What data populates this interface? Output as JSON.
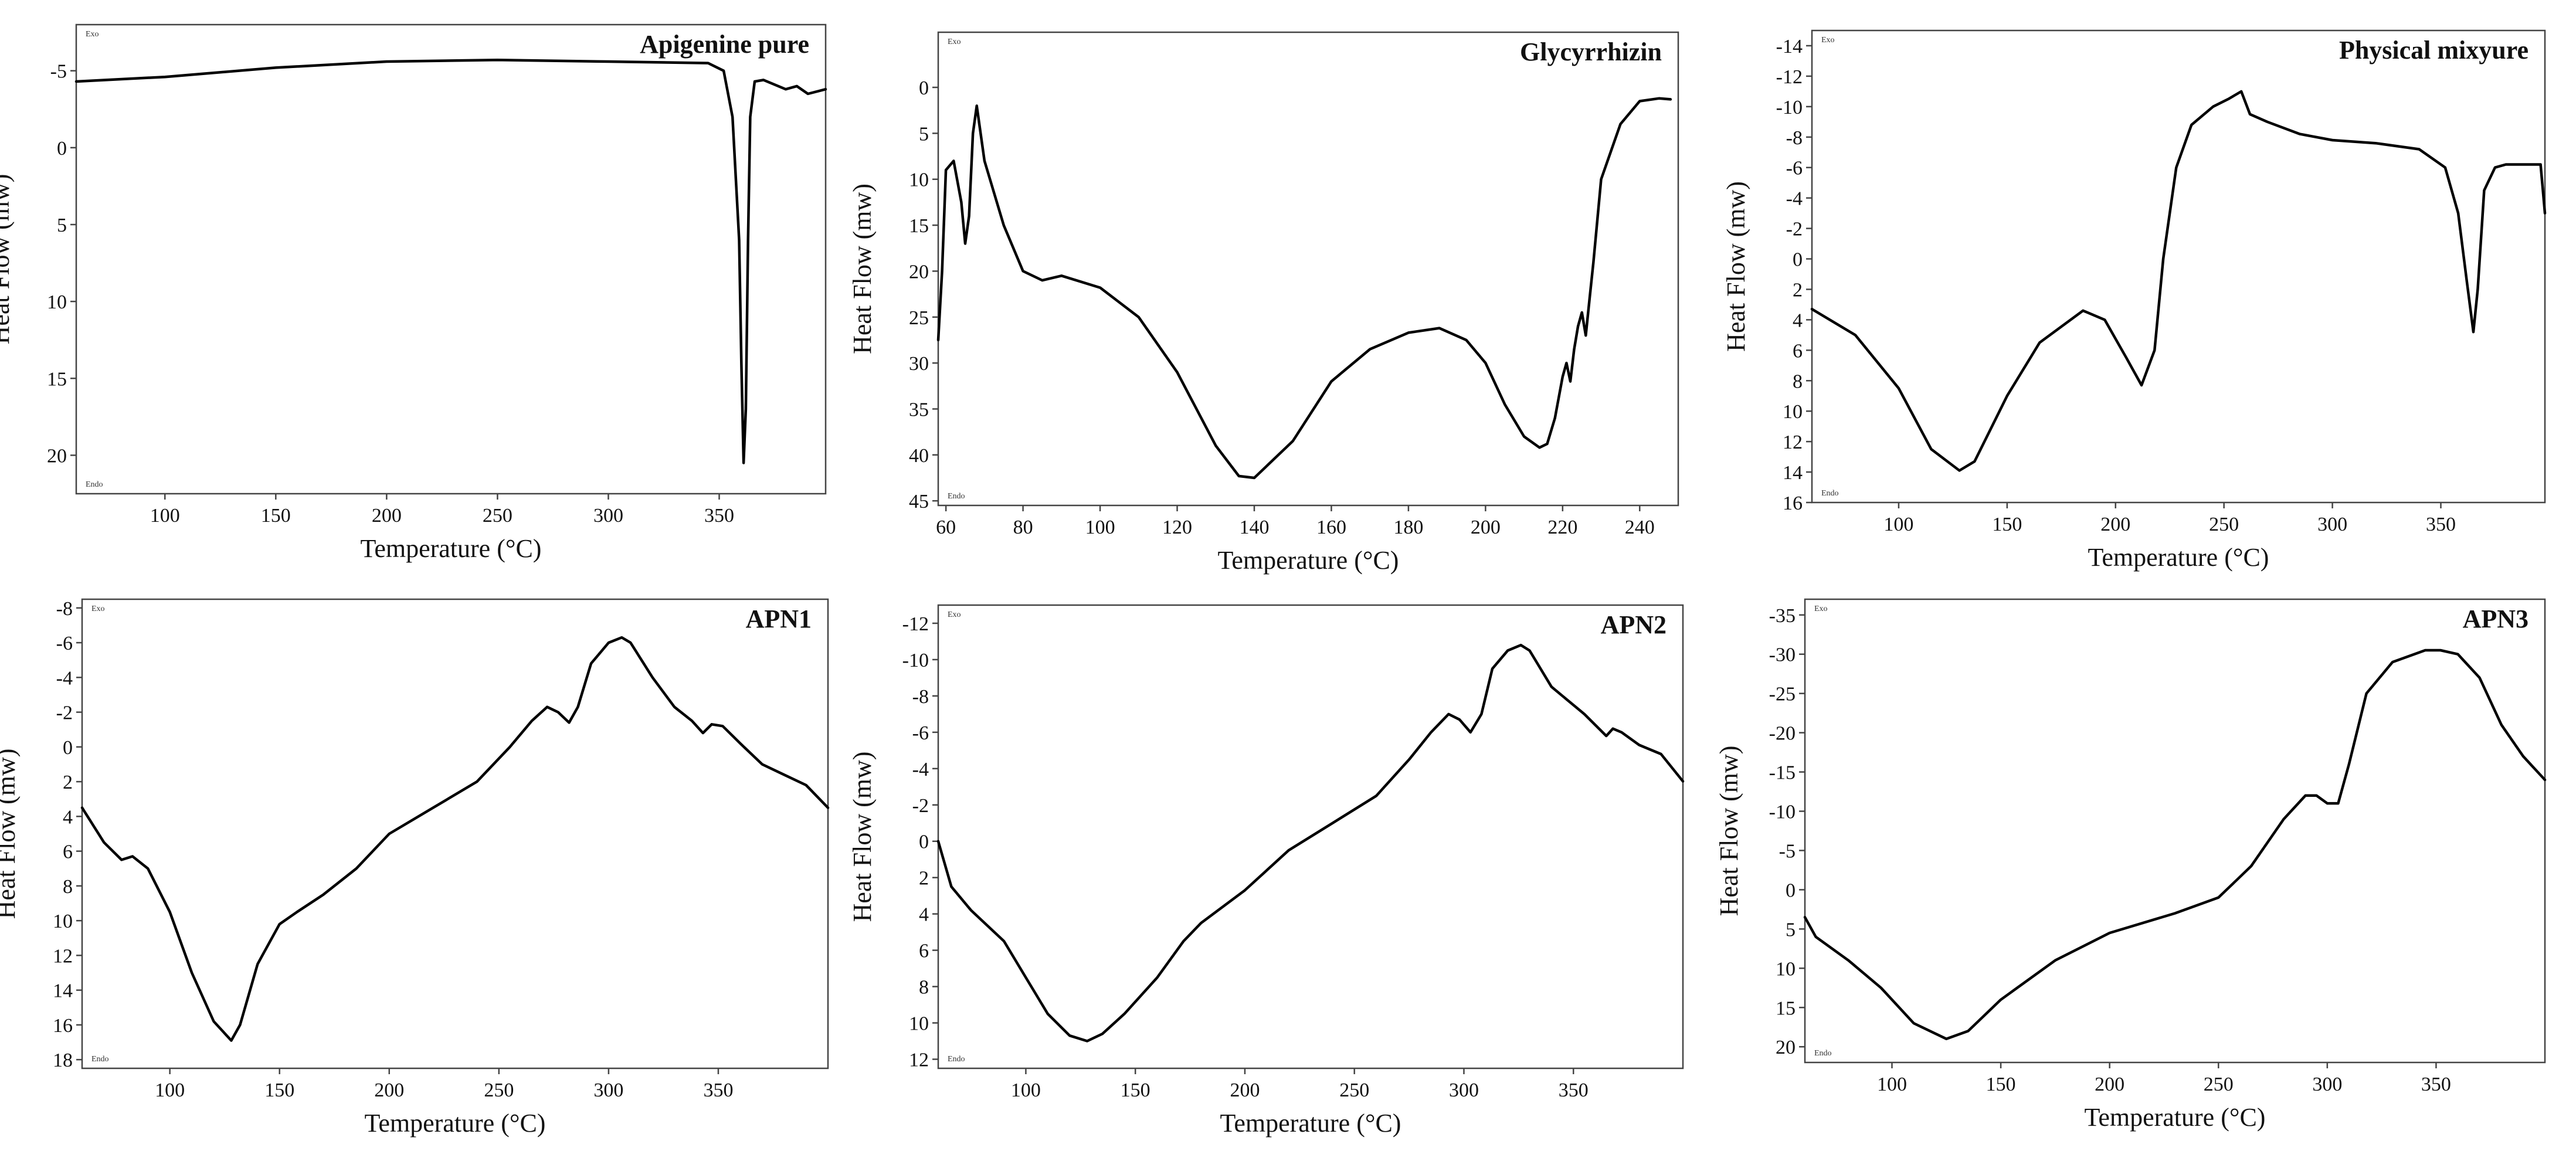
{
  "figure": {
    "tiny_top": "Exo",
    "tiny_bottom": "Endo"
  },
  "chart_data": [
    {
      "type": "line",
      "title": "Apigenine pure",
      "xlabel": "Temperature (°C)",
      "ylabel": "Heat Flow (mw)",
      "xlim": [
        60,
        398
      ],
      "ylim": [
        22.5,
        -8
      ],
      "xticks": [
        100,
        150,
        200,
        250,
        300,
        350
      ],
      "yticks": [
        -5,
        0,
        5,
        10,
        15,
        20
      ],
      "series": [
        {
          "name": "Apigenine pure",
          "x": [
            60,
            100,
            150,
            200,
            250,
            300,
            345,
            352,
            356,
            359,
            360,
            361,
            362,
            363,
            364,
            366,
            370,
            380,
            385,
            390,
            398
          ],
          "y": [
            -4.3,
            -4.6,
            -5.2,
            -5.6,
            -5.7,
            -5.6,
            -5.5,
            -5.0,
            -2.0,
            6.0,
            14.0,
            20.5,
            17.0,
            6.0,
            -2.0,
            -4.3,
            -4.4,
            -3.8,
            -4.0,
            -3.5,
            -3.8
          ]
        }
      ]
    },
    {
      "type": "line",
      "title": "Glycyrrhizin",
      "xlabel": "Temperature (°C)",
      "ylabel": "Heat Flow (mw)",
      "xlim": [
        58,
        250
      ],
      "ylim": [
        45.5,
        -6
      ],
      "xticks": [
        60,
        80,
        100,
        120,
        140,
        160,
        180,
        200,
        220,
        240
      ],
      "yticks": [
        0,
        5,
        10,
        15,
        20,
        25,
        30,
        35,
        40,
        45
      ],
      "series": [
        {
          "name": "Glycyrrhizin",
          "x": [
            58,
            59,
            60,
            62,
            64,
            65,
            66,
            67,
            68,
            70,
            75,
            80,
            85,
            90,
            100,
            110,
            120,
            130,
            136,
            140,
            150,
            160,
            170,
            180,
            188,
            195,
            200,
            205,
            210,
            214,
            216,
            218,
            220,
            221,
            222,
            223,
            224,
            225,
            226,
            227,
            228,
            230,
            235,
            240,
            245,
            248
          ],
          "y": [
            27.5,
            20,
            9,
            8,
            12.5,
            17,
            14,
            5,
            2,
            8,
            15,
            20,
            21,
            20.5,
            21.8,
            25,
            31,
            39,
            42.3,
            42.5,
            38.5,
            32,
            28.5,
            26.7,
            26.2,
            27.5,
            30,
            34.5,
            38,
            39.2,
            38.8,
            36,
            31.5,
            30,
            32,
            28.5,
            26,
            24.5,
            27,
            23,
            19,
            10,
            4,
            1.5,
            1.2,
            1.3
          ]
        }
      ]
    },
    {
      "type": "line",
      "title": "Physical mixyure",
      "xlabel": "Temperature (°C)",
      "ylabel": "Heat Flow (mw)",
      "xlim": [
        60,
        398
      ],
      "ylim": [
        16,
        -15
      ],
      "xticks": [
        100,
        150,
        200,
        250,
        300,
        350
      ],
      "yticks": [
        -14,
        -12,
        -10,
        -8,
        -6,
        -4,
        -2,
        0,
        2,
        4,
        6,
        8,
        10,
        12,
        14,
        16
      ],
      "series": [
        {
          "name": "Physical mixyure",
          "x": [
            60,
            80,
            100,
            115,
            128,
            135,
            150,
            165,
            185,
            195,
            205,
            212,
            218,
            222,
            228,
            235,
            245,
            252,
            258,
            262,
            270,
            285,
            300,
            320,
            340,
            352,
            358,
            362,
            365,
            367,
            370,
            375,
            380,
            390,
            396,
            398
          ],
          "y": [
            3.3,
            5.0,
            8.5,
            12.5,
            13.9,
            13.3,
            9.0,
            5.5,
            3.4,
            4.0,
            6.5,
            8.3,
            6.0,
            0.0,
            -6.0,
            -8.8,
            -10.0,
            -10.5,
            -11.0,
            -9.5,
            -9.0,
            -8.2,
            -7.8,
            -7.6,
            -7.2,
            -6.0,
            -3.0,
            1.5,
            4.8,
            2.0,
            -4.5,
            -6.0,
            -6.2,
            -6.2,
            -6.2,
            -3.0
          ]
        }
      ]
    },
    {
      "type": "line",
      "title": "APN1",
      "xlabel": "Temperature (°C)",
      "ylabel": "Heat Flow (mw)",
      "xlim": [
        60,
        400
      ],
      "ylim": [
        18.5,
        -8.5
      ],
      "xticks": [
        100,
        150,
        200,
        250,
        300,
        350
      ],
      "yticks": [
        -8,
        -6,
        -4,
        -2,
        0,
        2,
        4,
        6,
        8,
        10,
        12,
        14,
        16,
        18
      ],
      "series": [
        {
          "name": "APN1",
          "x": [
            60,
            70,
            78,
            83,
            90,
            100,
            110,
            120,
            128,
            132,
            140,
            150,
            158,
            170,
            185,
            200,
            220,
            240,
            255,
            265,
            272,
            277,
            282,
            286,
            292,
            300,
            306,
            310,
            320,
            330,
            338,
            343,
            347,
            352,
            360,
            370,
            380,
            390,
            400
          ],
          "y": [
            3.5,
            5.5,
            6.5,
            6.3,
            7.0,
            9.5,
            13.0,
            15.8,
            16.9,
            16.0,
            12.5,
            10.2,
            9.5,
            8.5,
            7.0,
            5.0,
            3.5,
            2.0,
            0.0,
            -1.5,
            -2.3,
            -2.0,
            -1.4,
            -2.3,
            -4.8,
            -6.0,
            -6.3,
            -6.0,
            -4.0,
            -2.3,
            -1.5,
            -0.8,
            -1.3,
            -1.2,
            -0.2,
            1.0,
            1.6,
            2.2,
            3.5
          ]
        }
      ]
    },
    {
      "type": "line",
      "title": "APN2",
      "xlabel": "Temperature (°C)",
      "ylabel": "Heat Flow (mw)",
      "xlim": [
        60,
        400
      ],
      "ylim": [
        12.5,
        -13
      ],
      "xticks": [
        100,
        150,
        200,
        250,
        300,
        350
      ],
      "yticks": [
        -12,
        -10,
        -8,
        -6,
        -4,
        -2,
        0,
        2,
        4,
        6,
        8,
        10,
        12
      ],
      "series": [
        {
          "name": "APN2",
          "x": [
            60,
            66,
            75,
            90,
            100,
            110,
            120,
            128,
            135,
            145,
            160,
            172,
            180,
            200,
            220,
            240,
            260,
            275,
            285,
            293,
            298,
            303,
            308,
            313,
            320,
            326,
            330,
            340,
            355,
            365,
            368,
            372,
            380,
            390,
            400
          ],
          "y": [
            0.0,
            2.5,
            3.8,
            5.5,
            7.5,
            9.5,
            10.7,
            11.0,
            10.6,
            9.5,
            7.5,
            5.5,
            4.5,
            2.7,
            0.5,
            -1.0,
            -2.5,
            -4.5,
            -6.0,
            -7.0,
            -6.7,
            -6.0,
            -7.0,
            -9.5,
            -10.5,
            -10.8,
            -10.5,
            -8.5,
            -7.0,
            -5.8,
            -6.2,
            -6.0,
            -5.3,
            -4.8,
            -3.3
          ]
        }
      ]
    },
    {
      "type": "line",
      "title": "APN3",
      "xlabel": "Temperature (°C)",
      "ylabel": "Heat Flow (mw)",
      "xlim": [
        60,
        400
      ],
      "ylim": [
        22,
        -37
      ],
      "xticks": [
        100,
        150,
        200,
        250,
        300,
        350
      ],
      "yticks": [
        -35,
        -30,
        -25,
        -20,
        -15,
        -10,
        -5,
        0,
        5,
        10,
        15,
        20
      ],
      "series": [
        {
          "name": "APN3",
          "x": [
            60,
            65,
            80,
            95,
            110,
            125,
            135,
            150,
            175,
            200,
            230,
            250,
            265,
            280,
            290,
            295,
            300,
            305,
            310,
            318,
            330,
            345,
            352,
            360,
            370,
            380,
            390,
            400
          ],
          "y": [
            3.5,
            6.0,
            9.0,
            12.5,
            17.0,
            19.0,
            18.0,
            14.0,
            9.0,
            5.5,
            3.0,
            1.0,
            -3.0,
            -9.0,
            -12.0,
            -12.0,
            -11.0,
            -11.0,
            -16.0,
            -25.0,
            -29.0,
            -30.5,
            -30.5,
            -30.0,
            -27.0,
            -21.0,
            -17.0,
            -14.0
          ]
        }
      ]
    }
  ]
}
